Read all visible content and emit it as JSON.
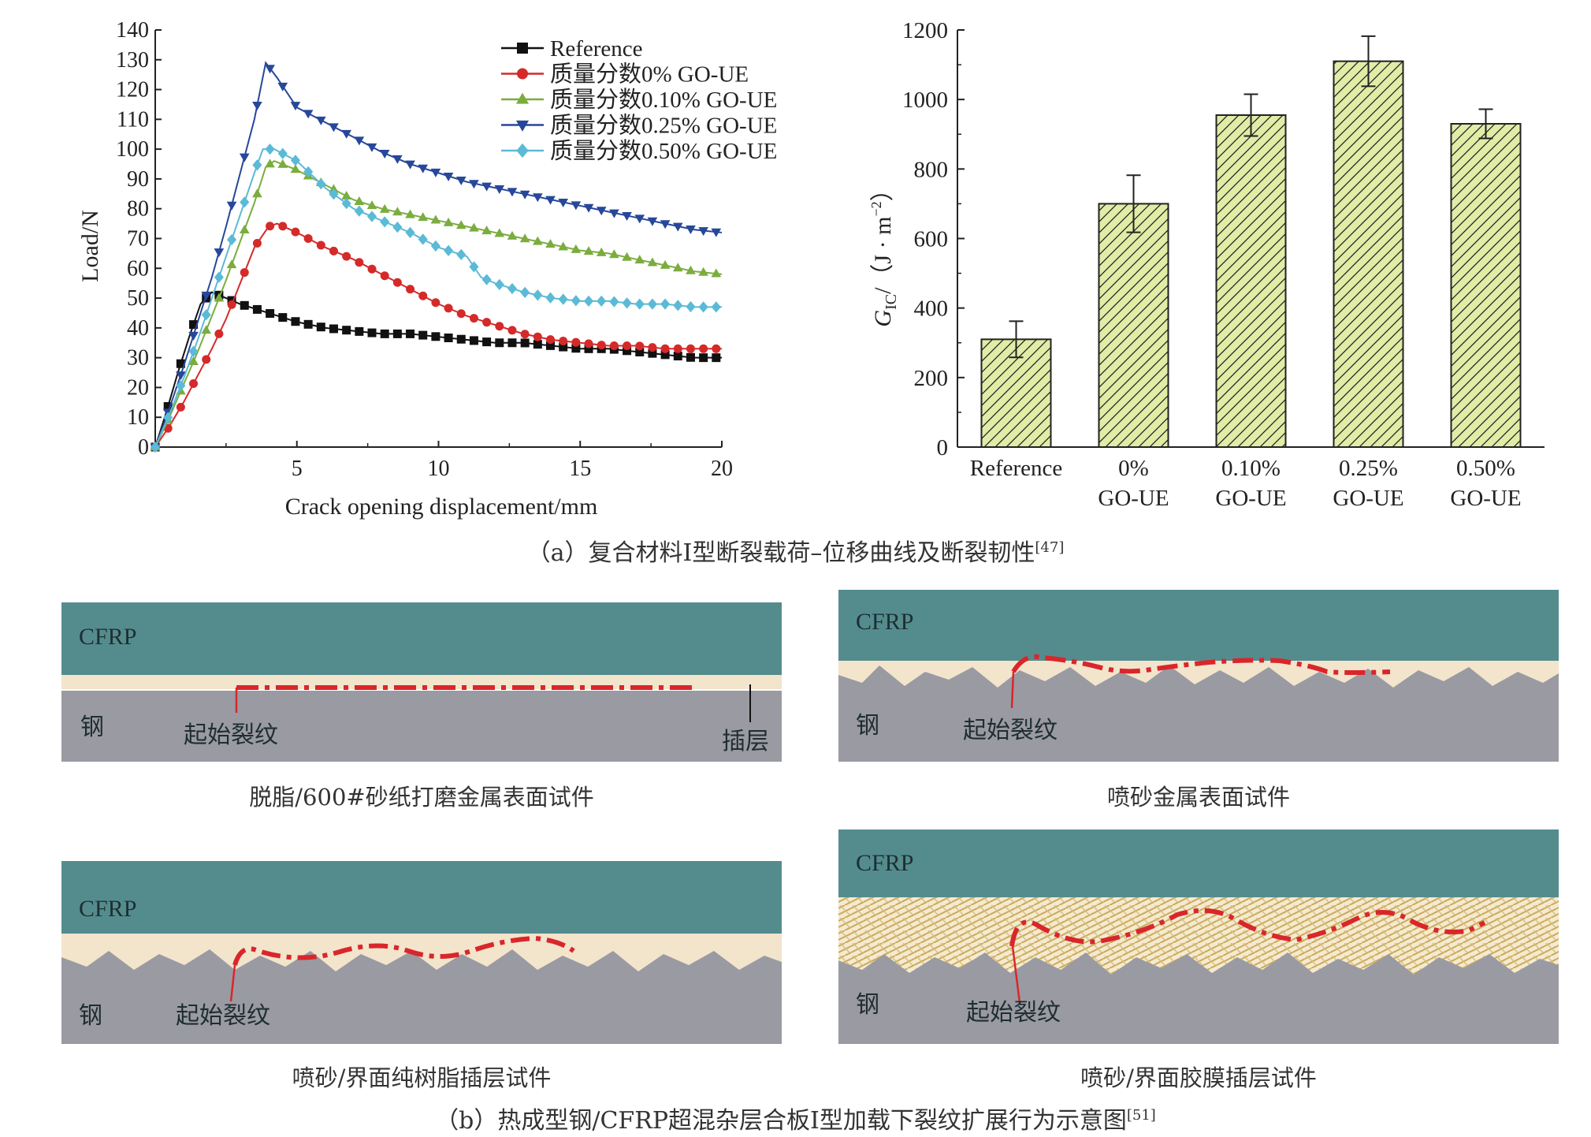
{
  "chart_data": [
    {
      "type": "line",
      "xlabel": "Crack opening displacement/mm",
      "ylabel": "Load/N",
      "xlim": [
        0,
        20
      ],
      "ylim": [
        0,
        140
      ],
      "xticks": [
        5,
        10,
        15,
        20
      ],
      "yticks": [
        0,
        10,
        20,
        30,
        40,
        50,
        60,
        70,
        80,
        90,
        100,
        110,
        120,
        130,
        140
      ],
      "legend_position": "top-right",
      "series": [
        {
          "name": "Reference",
          "color": "#111111",
          "marker": "square",
          "x": [
            0,
            0.4,
            0.8,
            1.2,
            1.6,
            2.0,
            2.5,
            3,
            4,
            5,
            6,
            7,
            8,
            9,
            10,
            11,
            12,
            13,
            14,
            15,
            16,
            17,
            18,
            19,
            20
          ],
          "y": [
            0,
            12,
            25,
            37,
            48,
            52,
            50,
            48,
            45,
            42,
            40,
            39,
            38,
            38,
            37,
            36,
            35,
            35,
            34,
            33,
            33,
            32,
            31,
            30,
            30
          ]
        },
        {
          "name": "质量分数0% GO-UE",
          "color": "#d42a2a",
          "marker": "circle",
          "x": [
            0,
            0.5,
            1,
            1.5,
            2,
            2.5,
            3,
            3.5,
            4,
            4.3,
            5,
            6,
            7,
            8,
            9,
            10,
            11,
            12,
            13,
            14,
            15,
            16,
            17,
            18,
            19,
            20
          ],
          "y": [
            0,
            7,
            15,
            24,
            33,
            43,
            55,
            67,
            74,
            75,
            72,
            67,
            63,
            58,
            53,
            48,
            44,
            41,
            38,
            36,
            35,
            34,
            34,
            33,
            33,
            33
          ]
        },
        {
          "name": "质量分数0.10% GO-UE",
          "color": "#7aad3e",
          "marker": "triangle-up",
          "x": [
            0,
            0.5,
            1,
            1.5,
            2,
            2.5,
            3,
            3.5,
            3.9,
            4.2,
            5,
            6,
            7,
            8,
            9,
            10,
            11,
            12,
            13,
            14,
            15,
            16,
            17,
            18,
            19,
            20
          ],
          "y": [
            0,
            10,
            21,
            32,
            44,
            56,
            69,
            82,
            94,
            96,
            93,
            88,
            83,
            80,
            78,
            76,
            74,
            72,
            70,
            68,
            66,
            65,
            63,
            61,
            59,
            58
          ]
        },
        {
          "name": "质量分数0.25% GO-UE",
          "color": "#27479a",
          "marker": "triangle-down",
          "x": [
            0,
            0.5,
            1,
            1.5,
            2,
            2.5,
            3,
            3.5,
            3.9,
            4.3,
            5,
            6,
            7,
            8,
            9,
            10,
            11,
            12,
            13,
            14,
            15,
            16,
            17,
            18,
            19,
            20
          ],
          "y": [
            0,
            13,
            27,
            42,
            57,
            74,
            92,
            110,
            129,
            124,
            114,
            109,
            104,
            99,
            95,
            92,
            89,
            87,
            85,
            83,
            81,
            79,
            77,
            75,
            73,
            72
          ]
        },
        {
          "name": "质量分数0.50% GO-UE",
          "color": "#5bbad6",
          "marker": "diamond",
          "x": [
            0,
            0.5,
            1,
            1.5,
            2,
            2.5,
            3,
            3.5,
            3.8,
            4.2,
            5,
            6,
            7,
            8,
            9,
            10,
            11,
            11.5,
            12,
            13,
            14,
            15,
            16,
            17,
            18,
            19,
            20
          ],
          "y": [
            0,
            11,
            23,
            36,
            50,
            64,
            78,
            92,
            100,
            100,
            96,
            87,
            80,
            76,
            72,
            67,
            64,
            57,
            55,
            52,
            50,
            49,
            49,
            48,
            48,
            47,
            47
          ]
        }
      ]
    },
    {
      "type": "bar",
      "ylabel_main": "G",
      "ylabel_sub": "IC",
      "ylabel_rest": "/（J · m",
      "ylabel_sup": "−2",
      "ylabel_end": "）",
      "ylim": [
        0,
        1200
      ],
      "yticks": [
        0,
        200,
        400,
        600,
        800,
        1000,
        1200
      ],
      "categories": [
        [
          "Reference"
        ],
        [
          "0%",
          "GO-UE"
        ],
        [
          "0.10%",
          "GO-UE"
        ],
        [
          "0.25%",
          "GO-UE"
        ],
        [
          "0.50%",
          "GO-UE"
        ]
      ],
      "values": [
        310,
        700,
        955,
        1110,
        930
      ],
      "errors": [
        52,
        82,
        60,
        72,
        42
      ],
      "bar_color": "#e1eca6"
    }
  ],
  "captions": {
    "a_prefix": "（a）复合材料Ⅰ型断裂载荷–位移曲线及断裂韧性",
    "a_ref": "[47]",
    "b_prefix": "（b）热成型钢/CFRP超混杂层合板Ⅰ型加载下裂纹扩展行为示意图",
    "b_ref": "[51]"
  },
  "diagrams": {
    "p1": {
      "cfrp": "CFRP",
      "steel": "钢",
      "crack": "起始裂纹",
      "insert": "插层",
      "title": "脱脂/600#砂纸打磨金属表面试件"
    },
    "p2": {
      "cfrp": "CFRP",
      "steel": "钢",
      "crack": "起始裂纹",
      "title": "喷砂金属表面试件"
    },
    "p3": {
      "cfrp": "CFRP",
      "steel": "钢",
      "crack": "起始裂纹",
      "title": "喷砂/界面纯树脂插层试件"
    },
    "p4": {
      "cfrp": "CFRP",
      "steel": "钢",
      "crack": "起始裂纹",
      "title": "喷砂/界面胶膜插层试件"
    }
  },
  "colors": {
    "cfrp": "#548c8e",
    "resin": "#f3e4cc",
    "steel": "#9a9aa2",
    "crack": "#d9262b",
    "film": "#e8d39c"
  }
}
